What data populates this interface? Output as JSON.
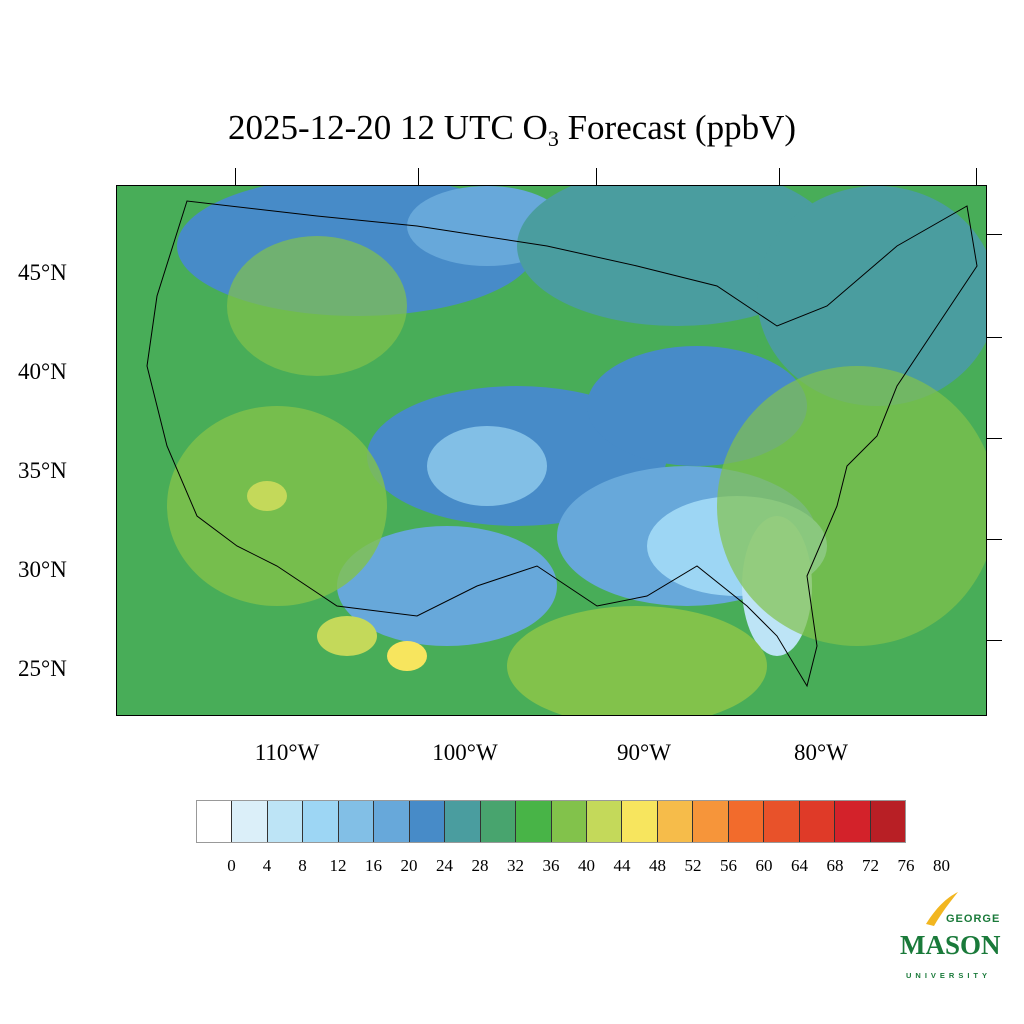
{
  "title": {
    "prefix": "2025-12-20 12 UTC O",
    "subscript": "3",
    "suffix": " Forecast (ppbV)"
  },
  "lat_labels": [
    "45°N",
    "40°N",
    "35°N",
    "30°N",
    "25°N"
  ],
  "lon_labels": [
    "110°W",
    "100°W",
    "90°W",
    "80°W"
  ],
  "colorbar": {
    "labels": [
      "0",
      "4",
      "8",
      "12",
      "16",
      "20",
      "24",
      "28",
      "32",
      "36",
      "40",
      "44",
      "48",
      "52",
      "56",
      "60",
      "64",
      "68",
      "72",
      "76",
      "80"
    ],
    "colors": [
      "#ffffff",
      "#dbeff9",
      "#bde4f6",
      "#9dd6f4",
      "#82bfe6",
      "#67a8da",
      "#478bc8",
      "#4a9d9f",
      "#48a46e",
      "#48b447",
      "#82c24b",
      "#c4d95a",
      "#f7e55e",
      "#f6bc4a",
      "#f6953a",
      "#f26b2c",
      "#e8522a",
      "#df3a28",
      "#d3222a",
      "#b81f25",
      "#a21b1f",
      "#8d1619"
    ]
  },
  "logo": {
    "line1": "GEORGE",
    "line2": "MASON",
    "line3": "UNIVERSITY"
  }
}
